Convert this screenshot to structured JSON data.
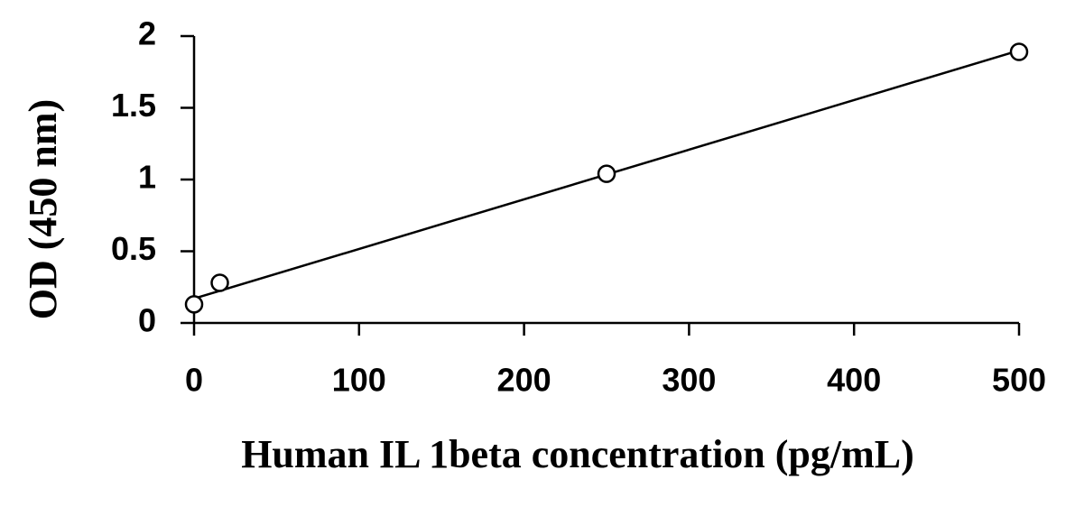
{
  "chart_data": {
    "type": "scatter",
    "x_label": "Human IL 1beta concentration (pg/mL)",
    "y_label": "OD (450 nm)",
    "x": [
      0,
      15.6,
      250,
      500
    ],
    "values": [
      0.13,
      0.28,
      1.04,
      1.89
    ],
    "color": "#000000",
    "trendline": {
      "x": [
        0,
        500
      ],
      "values": [
        0.17,
        1.9
      ]
    },
    "xlim": [
      0,
      500
    ],
    "xticks": [
      0,
      100,
      200,
      300,
      400,
      500
    ],
    "ylim": [
      0,
      2
    ],
    "yticks": [
      0,
      {
        "value": 0.5,
        "label": "0.5"
      },
      1,
      {
        "value": 1.5,
        "label": "1.5"
      },
      2
    ],
    "grid": false
  }
}
